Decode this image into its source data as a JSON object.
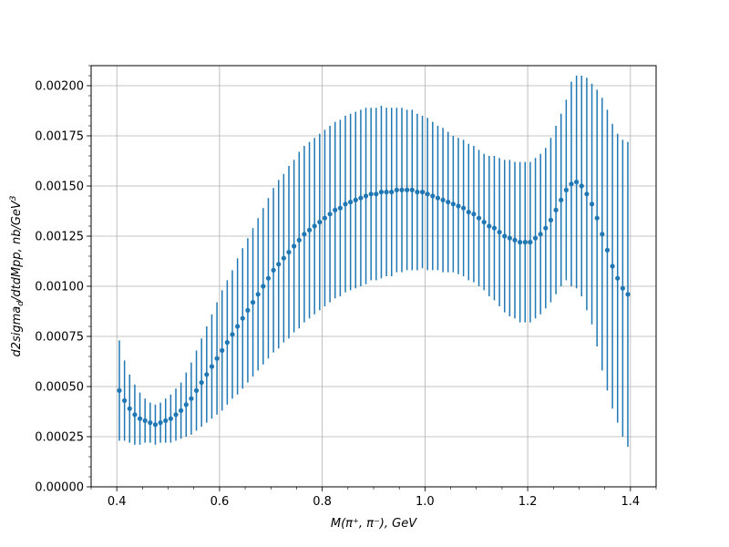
{
  "chart_data": {
    "type": "scatter",
    "title": "",
    "xlabel": "M(π⁺, π⁻), GeV",
    "ylabel_main": "d2sigma",
    "ylabel_sub": "d",
    "ylabel_rest": "/dtdMpp, nb/GeV",
    "ylabel_sup": "3",
    "xlim": [
      0.35,
      1.45
    ],
    "ylim": [
      0.0,
      0.0021
    ],
    "x_ticks": [
      "0.4",
      "0.6",
      "0.8",
      "1.0",
      "1.2",
      "1.4"
    ],
    "y_ticks": [
      "0.00000",
      "0.00025",
      "0.00050",
      "0.00075",
      "0.00100",
      "0.00125",
      "0.00150",
      "0.00175",
      "0.00200"
    ],
    "grid": true,
    "legend": "none",
    "color": "#1f77b4",
    "series": [
      {
        "x": [
          0.405,
          0.415,
          0.425,
          0.435,
          0.445,
          0.455,
          0.465,
          0.475,
          0.485,
          0.495,
          0.505,
          0.515,
          0.525,
          0.535,
          0.545,
          0.555,
          0.565,
          0.575,
          0.585,
          0.595,
          0.605,
          0.615,
          0.625,
          0.635,
          0.645,
          0.655,
          0.665,
          0.675,
          0.685,
          0.695,
          0.705,
          0.715,
          0.725,
          0.735,
          0.745,
          0.755,
          0.765,
          0.775,
          0.785,
          0.795,
          0.805,
          0.815,
          0.825,
          0.835,
          0.845,
          0.855,
          0.865,
          0.875,
          0.885,
          0.895,
          0.905,
          0.915,
          0.925,
          0.935,
          0.945,
          0.955,
          0.965,
          0.975,
          0.985,
          0.995,
          1.005,
          1.015,
          1.025,
          1.035,
          1.045,
          1.055,
          1.065,
          1.075,
          1.085,
          1.095,
          1.105,
          1.115,
          1.125,
          1.135,
          1.145,
          1.155,
          1.165,
          1.175,
          1.185,
          1.195,
          1.205,
          1.215,
          1.225,
          1.235,
          1.245,
          1.255,
          1.265,
          1.275,
          1.285,
          1.295,
          1.305,
          1.315,
          1.325,
          1.335,
          1.345,
          1.355,
          1.365,
          1.375,
          1.385,
          1.395
        ],
        "y": [
          0.00048,
          0.00043,
          0.00039,
          0.00036,
          0.00034,
          0.00033,
          0.00032,
          0.00031,
          0.00032,
          0.00033,
          0.00034,
          0.00036,
          0.00038,
          0.00041,
          0.00044,
          0.00048,
          0.00052,
          0.00056,
          0.0006,
          0.00064,
          0.00068,
          0.00072,
          0.00076,
          0.0008,
          0.00084,
          0.00088,
          0.00092,
          0.00096,
          0.001,
          0.00104,
          0.00108,
          0.00111,
          0.00114,
          0.00117,
          0.0012,
          0.00123,
          0.00126,
          0.00128,
          0.0013,
          0.00132,
          0.00134,
          0.00136,
          0.00138,
          0.00139,
          0.00141,
          0.00142,
          0.00143,
          0.00144,
          0.00145,
          0.00146,
          0.00146,
          0.00147,
          0.00147,
          0.00147,
          0.00148,
          0.00148,
          0.00148,
          0.00148,
          0.00147,
          0.00147,
          0.00146,
          0.00145,
          0.00144,
          0.00143,
          0.00142,
          0.00141,
          0.0014,
          0.00139,
          0.00137,
          0.00136,
          0.00134,
          0.00132,
          0.0013,
          0.00129,
          0.00127,
          0.00125,
          0.00124,
          0.00123,
          0.00122,
          0.00122,
          0.00122,
          0.00124,
          0.00126,
          0.00129,
          0.00133,
          0.00138,
          0.00143,
          0.00148,
          0.00151,
          0.00152,
          0.0015,
          0.00146,
          0.00141,
          0.00134,
          0.00126,
          0.00118,
          0.0011,
          0.00104,
          0.00099,
          0.00096
        ],
        "yerr": [
          0.00025,
          0.0002,
          0.00017,
          0.00015,
          0.00013,
          0.00011,
          0.0001,
          0.0001,
          0.0001,
          0.00011,
          0.00012,
          0.00013,
          0.00014,
          0.00016,
          0.00018,
          0.0002,
          0.00022,
          0.00024,
          0.00026,
          0.00028,
          0.0003,
          0.00031,
          0.00032,
          0.00034,
          0.00035,
          0.00036,
          0.00037,
          0.00038,
          0.00039,
          0.0004,
          0.00041,
          0.00042,
          0.00042,
          0.00043,
          0.00043,
          0.00044,
          0.00044,
          0.00044,
          0.00044,
          0.00044,
          0.00044,
          0.00044,
          0.00044,
          0.00044,
          0.00044,
          0.00044,
          0.00044,
          0.00044,
          0.00044,
          0.00043,
          0.00043,
          0.00043,
          0.00042,
          0.00042,
          0.00041,
          0.00041,
          0.0004,
          0.0004,
          0.00039,
          0.00038,
          0.00038,
          0.00037,
          0.00036,
          0.00036,
          0.00035,
          0.00034,
          0.00034,
          0.00034,
          0.00034,
          0.00034,
          0.00034,
          0.00034,
          0.00035,
          0.00036,
          0.00037,
          0.00038,
          0.00039,
          0.00039,
          0.0004,
          0.0004,
          0.0004,
          0.0004,
          0.0004,
          0.0004,
          0.00041,
          0.00042,
          0.00043,
          0.00045,
          0.00051,
          0.00053,
          0.00055,
          0.00058,
          0.0006,
          0.00064,
          0.00068,
          0.0007,
          0.00071,
          0.00072,
          0.00074,
          0.00076
        ]
      }
    ]
  }
}
